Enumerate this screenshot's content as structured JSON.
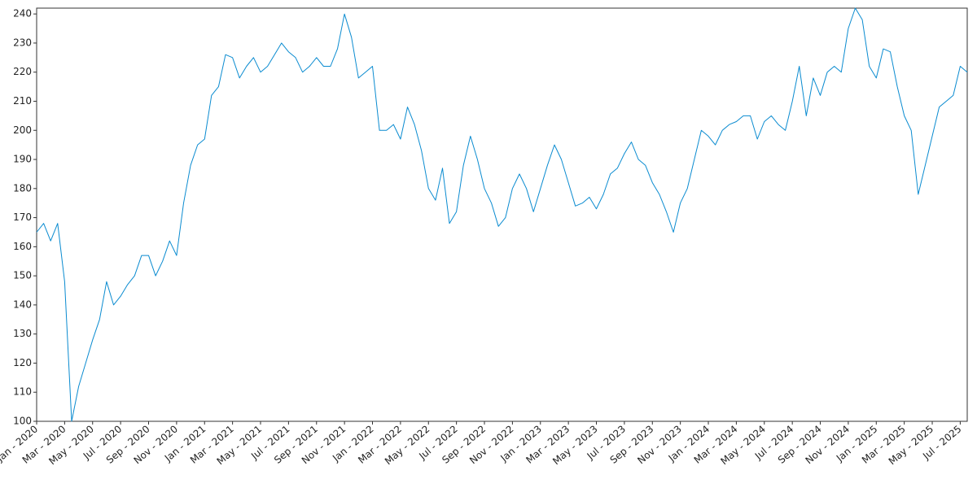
{
  "chart_data": {
    "type": "line",
    "categories": [
      "Jan - 2020",
      null,
      null,
      null,
      "Mar - 2020",
      null,
      null,
      null,
      "May - 2020",
      null,
      null,
      null,
      "Jul - 2020",
      null,
      null,
      null,
      "Sep - 2020",
      null,
      null,
      null,
      "Nov - 2020",
      null,
      null,
      null,
      "Jan - 2021",
      null,
      null,
      null,
      "Mar - 2021",
      null,
      null,
      null,
      "May - 2021",
      null,
      null,
      null,
      "Jul - 2021",
      null,
      null,
      null,
      "Sep - 2021",
      null,
      null,
      null,
      "Nov - 2021",
      null,
      null,
      null,
      "Jan - 2022",
      null,
      null,
      null,
      "Mar - 2022",
      null,
      null,
      null,
      "May - 2022",
      null,
      null,
      null,
      "Jul - 2022",
      null,
      null,
      null,
      "Sep - 2022",
      null,
      null,
      null,
      "Nov - 2022",
      null,
      null,
      null,
      "Jan - 2023",
      null,
      null,
      null,
      "Mar - 2023",
      null,
      null,
      null,
      "May - 2023",
      null,
      null,
      null,
      "Jul - 2023",
      null,
      null,
      null,
      "Sep - 2023",
      null,
      null,
      null,
      "Nov - 2023",
      null,
      null,
      null,
      "Jan - 2024",
      null,
      null,
      null,
      "Mar - 2024",
      null,
      null,
      null,
      "May - 2024",
      null,
      null,
      null,
      "Jul - 2024",
      null,
      null,
      null,
      "Sep - 2024",
      null,
      null,
      null,
      "Nov - 2024",
      null,
      null,
      null,
      "Jan - 2025",
      null,
      null,
      null,
      "Mar - 2025",
      null,
      null,
      null,
      "May - 2025",
      null,
      null,
      null,
      "Jul - 2025",
      null
    ],
    "values": [
      165,
      168,
      162,
      168,
      148,
      100,
      112,
      120,
      128,
      135,
      148,
      140,
      143,
      147,
      150,
      157,
      157,
      150,
      155,
      162,
      157,
      175,
      188,
      195,
      197,
      212,
      215,
      226,
      225,
      218,
      222,
      225,
      220,
      222,
      226,
      230,
      227,
      225,
      220,
      222,
      225,
      222,
      222,
      228,
      240,
      232,
      218,
      220,
      222,
      200,
      200,
      202,
      197,
      208,
      202,
      193,
      180,
      176,
      187,
      168,
      172,
      188,
      198,
      190,
      180,
      175,
      167,
      170,
      180,
      185,
      180,
      172,
      180,
      188,
      195,
      190,
      182,
      174,
      175,
      177,
      173,
      178,
      185,
      187,
      192,
      196,
      190,
      188,
      182,
      178,
      172,
      165,
      175,
      180,
      190,
      200,
      198,
      195,
      200,
      202,
      203,
      205,
      205,
      197,
      203,
      205,
      202,
      200,
      210,
      222,
      205,
      218,
      212,
      220,
      222,
      220,
      235,
      242,
      238,
      222,
      218,
      228,
      227,
      215,
      205,
      200,
      178,
      188,
      198,
      208,
      210,
      212,
      222,
      220
    ],
    "color": "#0a8bd0",
    "ylim": [
      100,
      242
    ],
    "yticks": [
      100,
      110,
      120,
      130,
      140,
      150,
      160,
      170,
      180,
      190,
      200,
      210,
      220,
      230,
      240
    ],
    "grid": false
  }
}
